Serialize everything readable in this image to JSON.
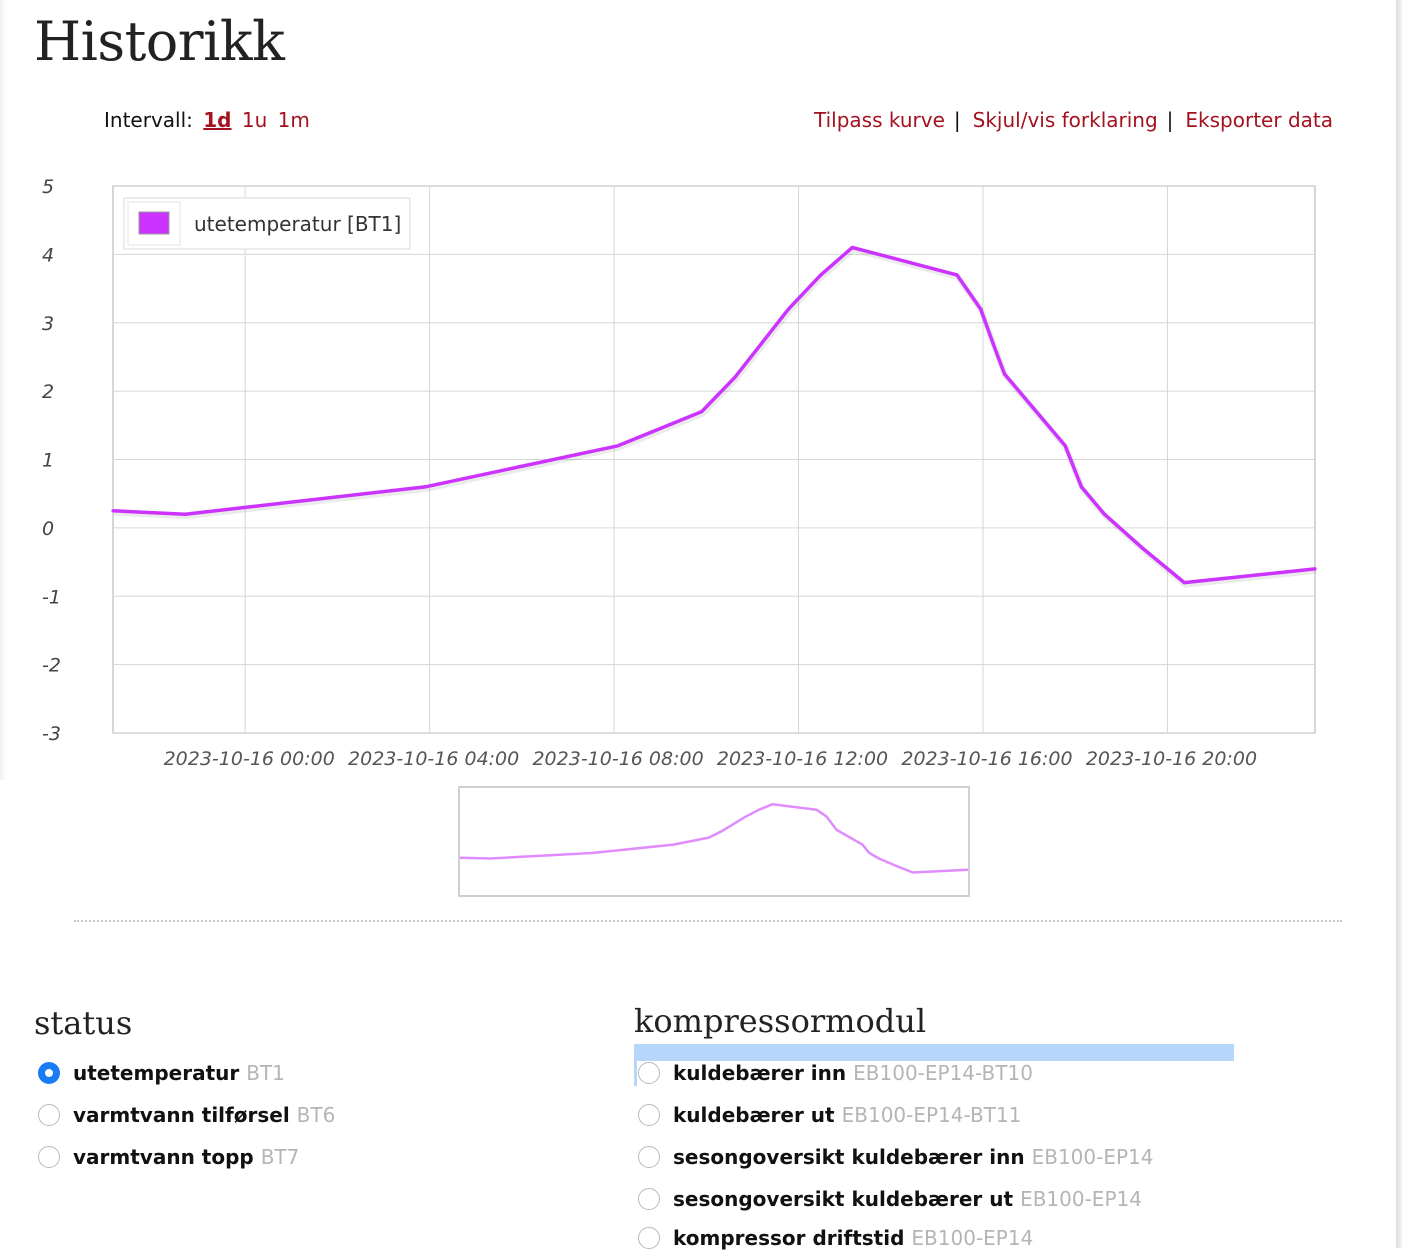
{
  "page": {
    "title": "Historikk"
  },
  "interval": {
    "label": "Intervall:",
    "options": [
      "1d",
      "1u",
      "1m"
    ],
    "active": "1d"
  },
  "actions": {
    "customize": "Tilpass kurve",
    "toggle_legend": "Skjul/vis forklaring",
    "export": "Eksporter data"
  },
  "chart_data": {
    "type": "line",
    "series": [
      {
        "name": "utetemperatur [BT1]",
        "color": "#cc33ff",
        "x": [
          "2023-10-15 21:08",
          "2023-10-15 22:42",
          "2023-10-16 03:54",
          "2023-10-16 08:05",
          "2023-10-16 09:54",
          "2023-10-16 10:37",
          "2023-10-16 11:47",
          "2023-10-16 12:29",
          "2023-10-16 13:10",
          "2023-10-16 15:26",
          "2023-10-16 15:57",
          "2023-10-16 16:13",
          "2023-10-16 16:28",
          "2023-10-16 17:47",
          "2023-10-16 18:08",
          "2023-10-16 18:38",
          "2023-10-16 19:28",
          "2023-10-16 20:22",
          "2023-10-16 23:12"
        ],
        "values": [
          0.25,
          0.2,
          0.6,
          1.2,
          1.7,
          2.2,
          3.2,
          3.7,
          4.1,
          3.7,
          3.2,
          2.7,
          2.25,
          1.2,
          0.6,
          0.2,
          -0.3,
          -0.8,
          -0.6
        ]
      }
    ],
    "ylim": [
      -3,
      5
    ],
    "yticks": [
      5,
      4,
      3,
      2,
      1,
      0,
      -1,
      -2,
      -3
    ],
    "xticks": [
      "2023-10-16 00:00",
      "2023-10-16 04:00",
      "2023-10-16 08:00",
      "2023-10-16 12:00",
      "2023-10-16 16:00",
      "2023-10-16 20:00"
    ],
    "legend": "top-left",
    "grid": true,
    "navigator": true
  },
  "status": {
    "title": "status",
    "items": [
      {
        "label": "utetemperatur",
        "code": "BT1",
        "selected": true
      },
      {
        "label": "varmtvann tilførsel",
        "code": "BT6",
        "selected": false
      },
      {
        "label": "varmtvann topp",
        "code": "BT7",
        "selected": false
      }
    ]
  },
  "kompressormodul": {
    "title": "kompressormodul",
    "items": [
      {
        "label": "kuldebærer inn",
        "code": "EB100-EP14-BT10"
      },
      {
        "label": "kuldebærer ut",
        "code": "EB100-EP14-BT11"
      },
      {
        "label": "sesongoversikt kuldebærer inn",
        "code": "EB100-EP14"
      },
      {
        "label": "sesongoversikt kuldebærer ut",
        "code": "EB100-EP14"
      },
      {
        "label": "kompressor driftstid",
        "code": "EB100-EP14"
      }
    ]
  }
}
